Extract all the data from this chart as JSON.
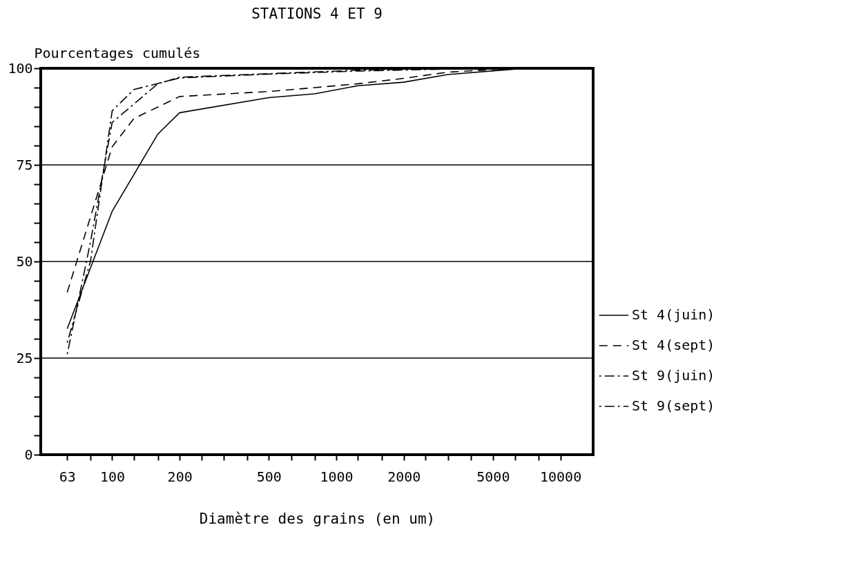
{
  "chart_data": {
    "type": "line",
    "title": "STATIONS 4 ET 9",
    "xlabel": "Diamètre des grains (en um)",
    "ylabel": "Pourcentages cumulés",
    "log": "x",
    "xlim": [
      48,
      14000
    ],
    "xticks": [
      63,
      {
        "value": 80,
        "label": null
      },
      100,
      {
        "value": 125,
        "label": null
      },
      {
        "value": 160,
        "label": null
      },
      200,
      {
        "value": 250,
        "label": null
      },
      {
        "value": 315,
        "label": null
      },
      {
        "value": 400,
        "label": null
      },
      500,
      {
        "value": 630,
        "label": null
      },
      {
        "value": 800,
        "label": null
      },
      1000,
      {
        "value": 1250,
        "label": null
      },
      {
        "value": 1600,
        "label": null
      },
      2000,
      {
        "value": 2500,
        "label": null
      },
      {
        "value": 3150,
        "label": null
      },
      {
        "value": 4000,
        "label": null
      },
      5000,
      {
        "value": 6300,
        "label": null
      },
      {
        "value": 8000,
        "label": null
      },
      10000
    ],
    "ylim": [
      0,
      100
    ],
    "yticks": [
      0,
      {
        "value": 5,
        "label": null
      },
      {
        "value": 10,
        "label": null
      },
      {
        "value": 15,
        "label": null
      },
      {
        "value": 20,
        "label": null
      },
      25,
      {
        "value": 30,
        "label": null
      },
      {
        "value": 35,
        "label": null
      },
      {
        "value": 40,
        "label": null
      },
      {
        "value": 45,
        "label": null
      },
      50,
      {
        "value": 55,
        "label": null
      },
      {
        "value": 60,
        "label": null
      },
      {
        "value": 65,
        "label": null
      },
      {
        "value": 70,
        "label": null
      },
      75,
      {
        "value": 80,
        "label": null
      },
      {
        "value": 85,
        "label": null
      },
      {
        "value": 90,
        "label": null
      },
      {
        "value": 95,
        "label": null
      },
      100
    ],
    "grid": "y",
    "legend": "right",
    "marker": "none",
    "series": [
      {
        "name": "St 4(juin)",
        "color": "#000000",
        "line_style": "solid",
        "x": [
          63,
          100,
          160,
          200,
          500,
          800,
          1250,
          2000,
          3150,
          6300,
          10000
        ],
        "values": [
          32.6,
          63,
          83,
          88.5,
          92.4,
          93.4,
          95.5,
          96.4,
          98.4,
          99.8,
          100
        ]
      },
      {
        "name": "St 4(sept)",
        "color": "#000000",
        "line_style": "dashed",
        "x": [
          63,
          100,
          125,
          200,
          500,
          800,
          1250,
          2000,
          3150,
          6300,
          10000
        ],
        "values": [
          42,
          79.7,
          87,
          92.7,
          94,
          95,
          96,
          97.4,
          99,
          100,
          100
        ]
      },
      {
        "name": "St 9(juin)",
        "color": "#000000",
        "line_style": "dotted",
        "x": [
          63,
          80,
          100,
          125,
          200,
          500,
          1250,
          3150,
          10000
        ],
        "values": [
          29,
          50,
          89,
          94.5,
          97.5,
          98.5,
          99.3,
          99.8,
          100
        ]
      },
      {
        "name": "St 9(sept)",
        "color": "#000000",
        "line_style": "dotted",
        "x": [
          63,
          80,
          100,
          160,
          200,
          500,
          1250,
          3150,
          10000
        ],
        "values": [
          26,
          55,
          86,
          96,
          97.7,
          98.6,
          99.5,
          100,
          100
        ]
      }
    ]
  }
}
